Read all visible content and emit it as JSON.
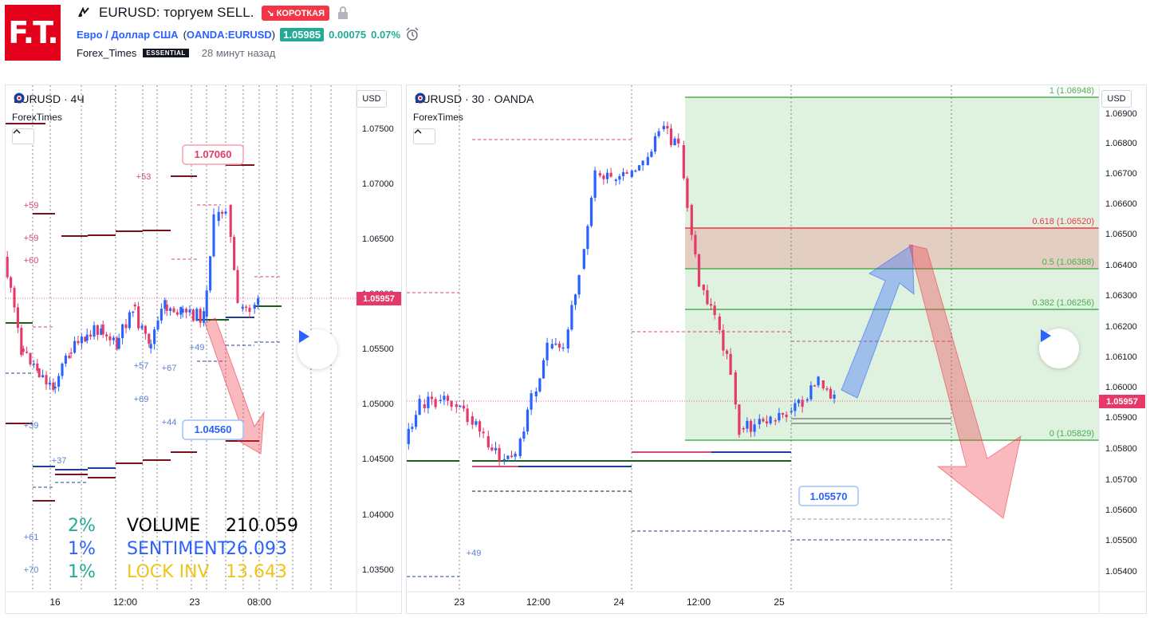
{
  "header": {
    "logo_text": "F.T.",
    "title": "EURUSD: торгуем SELL.",
    "badge": "↘ КОРОТКАЯ",
    "symbol_desc": "Евро / Доллар США",
    "symbol_exchange_open": "(",
    "symbol_exchange": "OANDA:EURUSD",
    "symbol_exchange_close": ")",
    "price": "1.05985",
    "change": "0.00075",
    "change_pct": "0.07%",
    "author": "Forex_Times",
    "author_badge": "ESSENTIAL",
    "time_ago": "28 минут назад"
  },
  "left_chart": {
    "title": "EURUSD · 4Ч",
    "sub_label": "ForexTimes",
    "currency_button": "USD",
    "price_axis": [
      "1.07500",
      "1.07000",
      "1.06500",
      "1.06000",
      "1.05500",
      "1.05000",
      "1.04500",
      "1.04000",
      "1.03500"
    ],
    "time_axis": [
      "16",
      "12:00",
      "23",
      "08:00"
    ],
    "current_price": "1.05957",
    "callout_upper": "1.07060",
    "callout_lower": "1.04560",
    "level_numbers": [
      "+53",
      "+59",
      "+59",
      "+60",
      "+49",
      "+57",
      "+67",
      "+69",
      "+44",
      "+39",
      "+37",
      "+61",
      "+70"
    ],
    "stats": [
      {
        "pct": "2%",
        "label": "VOLUME",
        "value": "210.059",
        "color": "#000000",
        "pct_color": "#22ab94"
      },
      {
        "pct": "1%",
        "label": "SENTIMENT",
        "value": "26.093",
        "color": "#2962ff",
        "pct_color": "#2962ff"
      },
      {
        "pct": "1%",
        "label": "LOCK INV",
        "value": "13.643",
        "color": "#f0c419",
        "pct_color": "#22ab94"
      }
    ]
  },
  "right_chart": {
    "title": "EURUSD · 30 · OANDA",
    "sub_label": "ForexTimes",
    "currency_button": "USD",
    "price_axis": [
      "1.06900",
      "1.06800",
      "1.06700",
      "1.06600",
      "1.06500",
      "1.06400",
      "1.06300",
      "1.06200",
      "1.06100",
      "1.06000",
      "1.05900",
      "1.05800",
      "1.05700",
      "1.05600",
      "1.05500",
      "1.05400"
    ],
    "time_axis": [
      "23",
      "12:00",
      "24",
      "12:00",
      "25"
    ],
    "current_price": "1.05957",
    "callout": "1.05570",
    "level_number": "+49",
    "fib_levels": [
      {
        "label": "1 (1.06948)"
      },
      {
        "label": "0.618 (1.06520)"
      },
      {
        "label": "0.5 (1.06388)"
      },
      {
        "label": "0.382 (1.06256)"
      },
      {
        "label": "0 (1.05829)"
      }
    ]
  },
  "colors": {
    "up_candle": "#2962ff",
    "down_candle": "#e5396a",
    "fib_green": "#4caf50",
    "fib_red": "#f23645",
    "price_tag": "#e5396a"
  },
  "icons": [
    "idea-icon",
    "lock-icon",
    "alarm-icon",
    "flag-icon",
    "chevron-up-icon",
    "play-icon"
  ]
}
